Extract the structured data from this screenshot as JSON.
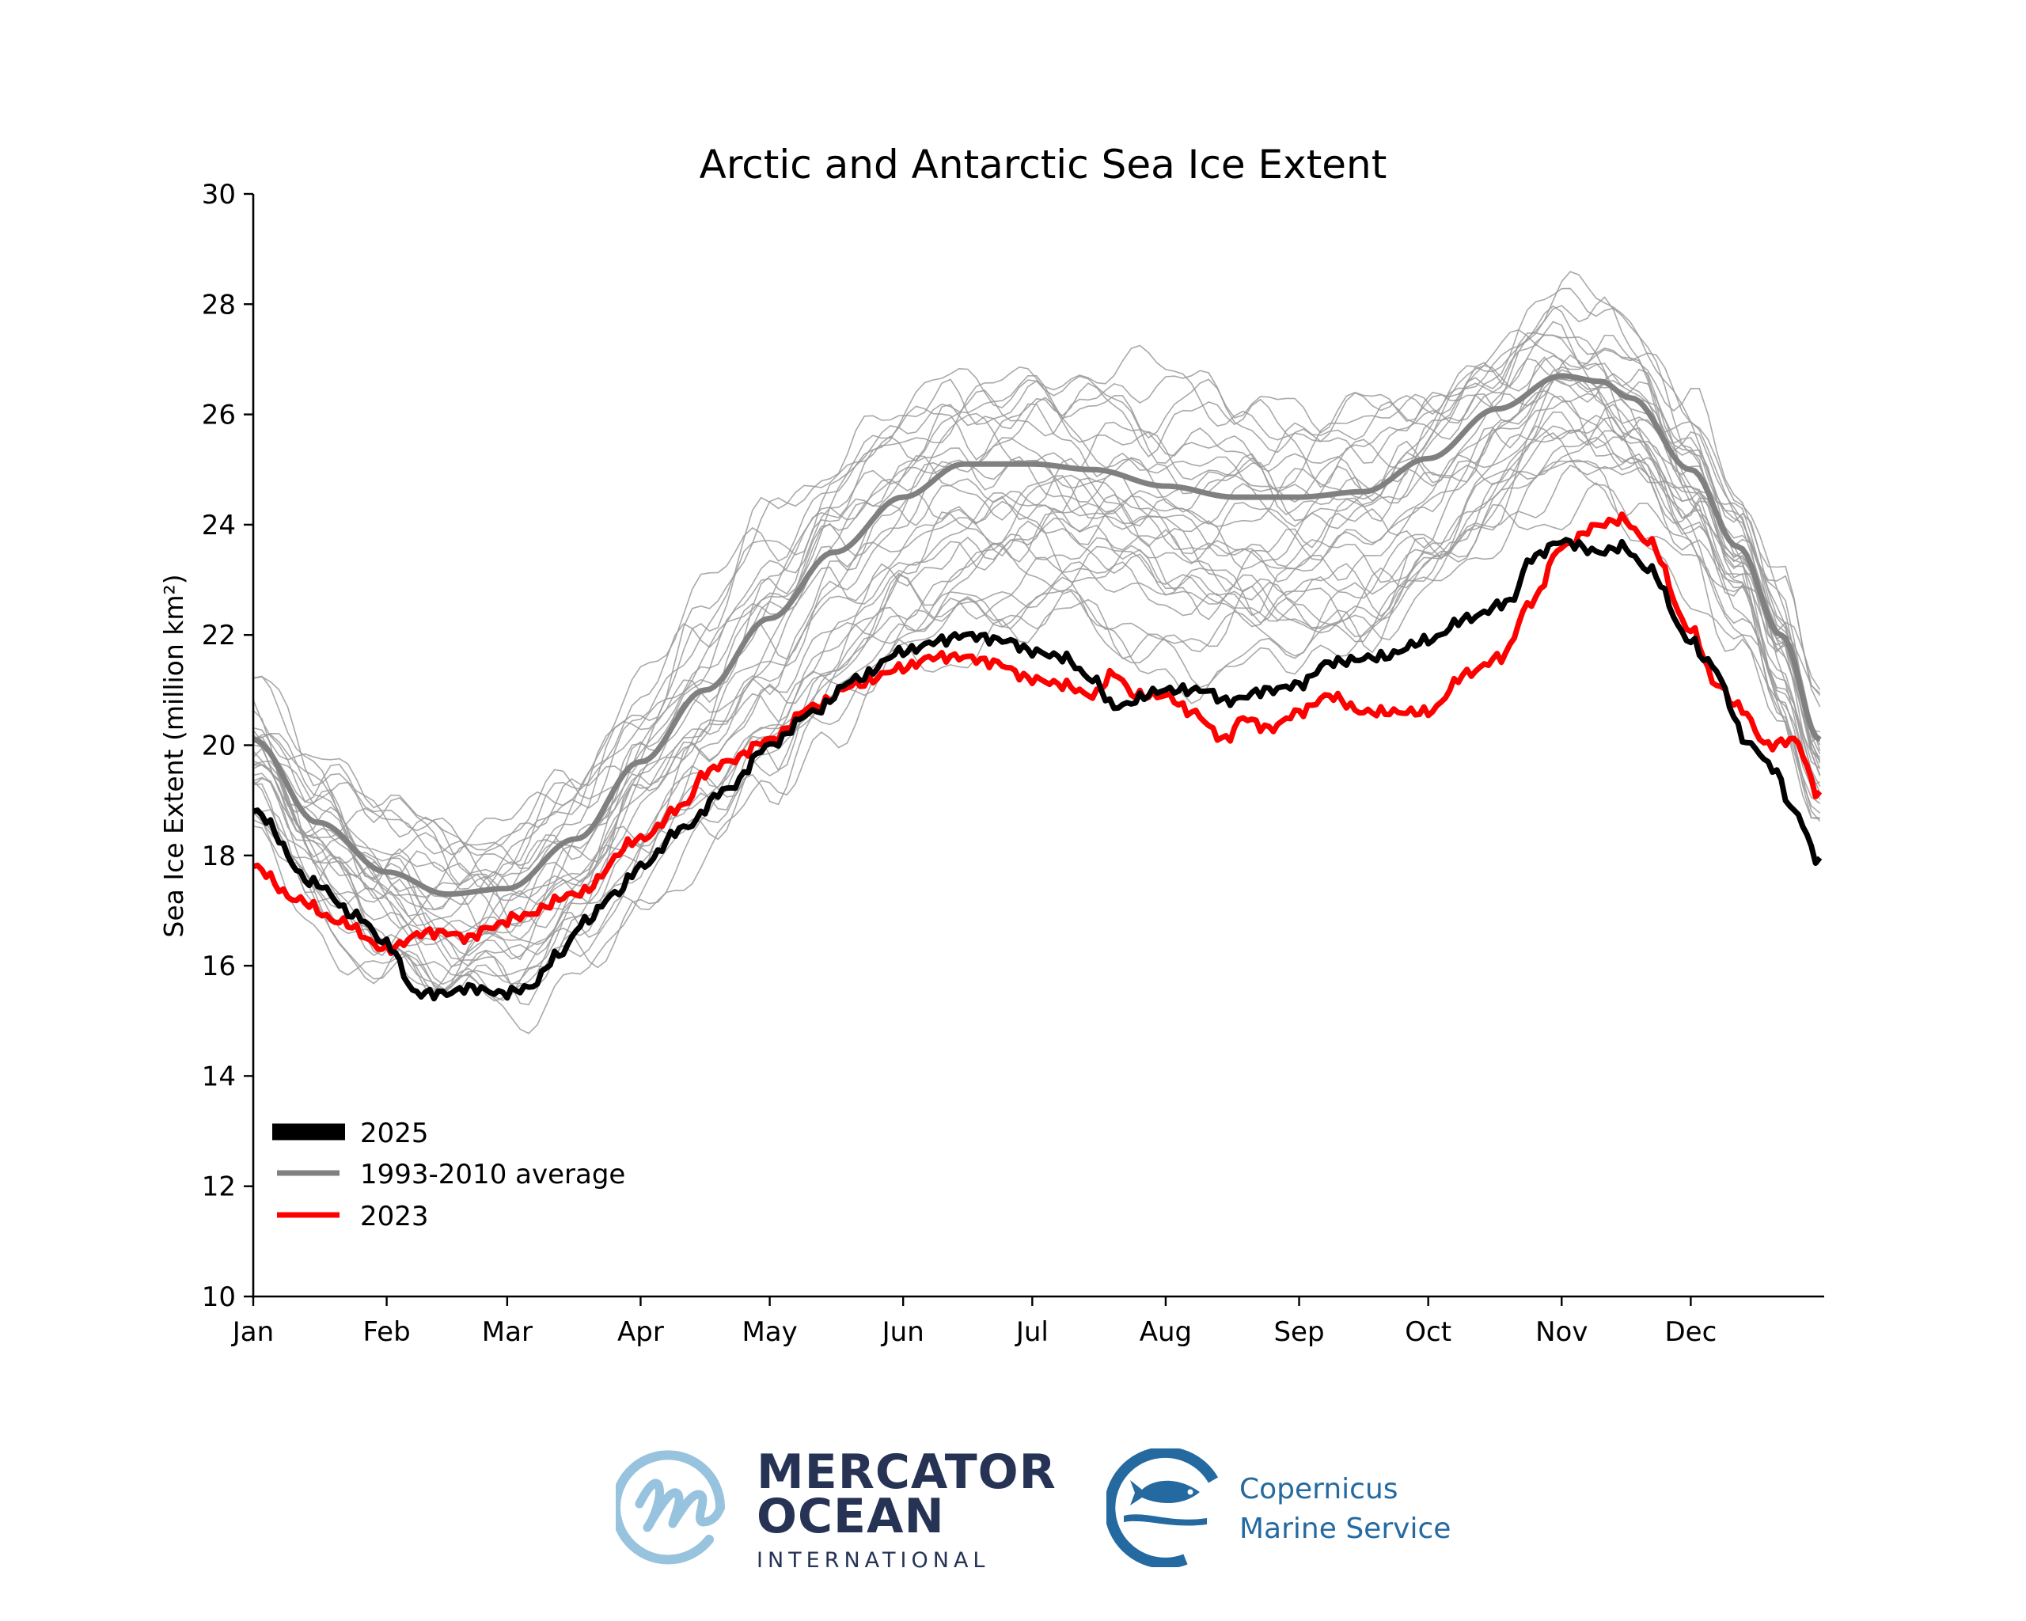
{
  "chart_data": {
    "type": "line",
    "title": "Arctic and Antarctic Sea Ice Extent",
    "xlabel": "",
    "ylabel": "Sea Ice Extent (million km²)",
    "xlim": [
      0,
      365
    ],
    "ylim": [
      10,
      30
    ],
    "yticks": [
      10,
      12,
      14,
      16,
      18,
      20,
      22,
      24,
      26,
      28,
      30
    ],
    "xticks": [
      {
        "label": "Jan",
        "day": 0
      },
      {
        "label": "Feb",
        "day": 31
      },
      {
        "label": "Mar",
        "day": 59
      },
      {
        "label": "Apr",
        "day": 90
      },
      {
        "label": "May",
        "day": 120
      },
      {
        "label": "Jun",
        "day": 151
      },
      {
        "label": "Jul",
        "day": 181
      },
      {
        "label": "Aug",
        "day": 212
      },
      {
        "label": "Sep",
        "day": 243
      },
      {
        "label": "Oct",
        "day": 273
      },
      {
        "label": "Nov",
        "day": 304
      },
      {
        "label": "Dec",
        "day": 334
      }
    ],
    "grid": false,
    "legend_position": "lower-left",
    "x_unit": "day of year",
    "series": [
      {
        "name": "2025",
        "color": "#000000",
        "x": [
          0,
          14,
          24,
          31,
          38,
          45,
          50,
          58,
          64,
          71,
          77,
          84,
          90,
          100,
          110,
          120,
          130,
          140,
          151,
          160,
          165,
          175,
          181,
          188,
          195,
          200,
          212,
          221,
          226,
          236,
          243,
          250,
          262,
          273,
          282,
          292,
          297,
          304,
          313,
          318,
          324,
          334,
          338,
          348,
          353,
          358,
          364
        ],
        "values": [
          18.8,
          17.5,
          16.9,
          16.4,
          15.5,
          15.5,
          15.6,
          15.5,
          15.6,
          16.2,
          16.8,
          17.3,
          17.8,
          18.5,
          19.2,
          20.0,
          20.6,
          21.2,
          21.7,
          21.9,
          22.0,
          21.9,
          21.7,
          21.6,
          21.2,
          20.7,
          21.0,
          21.0,
          20.8,
          21.0,
          21.1,
          21.5,
          21.6,
          21.9,
          22.3,
          22.6,
          23.4,
          23.7,
          23.5,
          23.6,
          23.2,
          21.9,
          21.5,
          20.0,
          19.6,
          18.8,
          17.9
        ]
      },
      {
        "name": "1993-2010 average",
        "color": "#808080",
        "x": [
          0,
          15,
          31,
          45,
          59,
          75,
          90,
          105,
          120,
          135,
          151,
          165,
          181,
          195,
          212,
          228,
          243,
          258,
          273,
          289,
          304,
          313,
          320,
          334,
          345,
          355,
          364
        ],
        "values": [
          20.1,
          18.6,
          17.7,
          17.3,
          17.4,
          18.3,
          19.7,
          21.0,
          22.3,
          23.5,
          24.5,
          25.1,
          25.1,
          25.0,
          24.7,
          24.5,
          24.5,
          24.6,
          25.2,
          26.1,
          26.7,
          26.6,
          26.3,
          25.0,
          23.6,
          22.0,
          20.1
        ]
      },
      {
        "name": "2023",
        "color": "#ff0000",
        "x": [
          0,
          10,
          20,
          31,
          40,
          45,
          50,
          55,
          62,
          75,
          90,
          100,
          105,
          110,
          120,
          130,
          140,
          151,
          158,
          165,
          172,
          181,
          188,
          195,
          200,
          205,
          212,
          218,
          226,
          230,
          236,
          243,
          250,
          258,
          265,
          273,
          282,
          290,
          297,
          304,
          313,
          318,
          324,
          334,
          340,
          345,
          352,
          358,
          364
        ],
        "values": [
          17.8,
          17.2,
          16.8,
          16.3,
          16.6,
          16.6,
          16.5,
          16.7,
          16.9,
          17.3,
          18.3,
          18.9,
          19.5,
          19.7,
          20.1,
          20.7,
          21.1,
          21.4,
          21.6,
          21.6,
          21.5,
          21.2,
          21.1,
          20.9,
          21.3,
          20.9,
          20.9,
          20.6,
          20.1,
          20.5,
          20.3,
          20.6,
          20.9,
          20.6,
          20.6,
          20.6,
          21.3,
          21.6,
          22.6,
          23.6,
          24.0,
          24.1,
          23.7,
          22.1,
          21.1,
          20.7,
          20.0,
          20.1,
          19.1
        ]
      }
    ],
    "background_series": {
      "name": "individual years 1993-2024",
      "color": "#9a9a9a",
      "count": 30,
      "note": "thin grey lines, each year's daily extent; spread roughly ±2 around average, below average in later years",
      "spread_min": -3.0,
      "spread_max": 1.6
    },
    "legend": [
      {
        "label": "2025",
        "color": "#000000"
      },
      {
        "label": "1993-2010 average",
        "color": "#808080"
      },
      {
        "label": "2023",
        "color": "#ff0000"
      }
    ]
  },
  "logos": {
    "mercator": {
      "line1": "MERCATOR",
      "line2": "OCEAN",
      "line3": "INTERNATIONAL",
      "text_color": "#263355",
      "symbol_color": "#97c3de"
    },
    "copernicus": {
      "line1": "Copernicus",
      "line2": "Marine Service",
      "color": "#246aa1"
    }
  }
}
